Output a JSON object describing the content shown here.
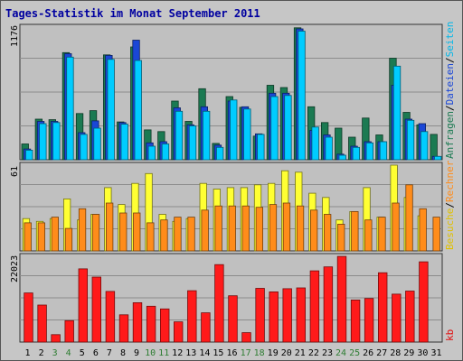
{
  "title": "Tages-Statistik im Monat September 2011",
  "colors": {
    "frame_bg": "#c6c6c6",
    "plot_bg": "#c0c0c0",
    "title": "#0000a0",
    "weekday_text": "#000000",
    "weekend_text": "#2e7d32",
    "anfragen": "#1b7a52",
    "dateien": "#1a47d6",
    "seiten": "#00ccff",
    "besuche": "#ffff33",
    "rechner": "#ff8c1a",
    "kb": "#ff1a1a"
  },
  "right_legends": {
    "top": [
      {
        "text": "Anfragen",
        "color": "#1b7a52"
      },
      {
        "text": "/",
        "color": "#000000"
      },
      {
        "text": "Dateien",
        "color": "#1a47d6"
      },
      {
        "text": "/",
        "color": "#000000"
      },
      {
        "text": "Seiten",
        "color": "#00b7e8"
      }
    ],
    "middle": [
      {
        "text": "Besuche",
        "color": "#e0c000"
      },
      {
        "text": "/",
        "color": "#000000"
      },
      {
        "text": "Rechner",
        "color": "#ff8c1a"
      }
    ],
    "bottom": [
      {
        "text": "kb",
        "color": "#e01010"
      }
    ]
  },
  "chart_data": [
    {
      "type": "bar",
      "panel": "top",
      "axis_max_label": "1176",
      "ylim": [
        0,
        1176
      ],
      "categories": [
        "1",
        "2",
        "3",
        "4",
        "5",
        "6",
        "7",
        "8",
        "9",
        "10",
        "11",
        "12",
        "13",
        "14",
        "15",
        "16",
        "17",
        "18",
        "19",
        "20",
        "21",
        "22",
        "23",
        "24",
        "25",
        "26",
        "27",
        "28",
        "29",
        "30",
        "31"
      ],
      "weekend": [
        false,
        false,
        true,
        true,
        false,
        false,
        false,
        false,
        false,
        true,
        true,
        false,
        false,
        false,
        false,
        false,
        true,
        true,
        false,
        false,
        false,
        false,
        false,
        true,
        true,
        false,
        false,
        false,
        false,
        false,
        false
      ],
      "series": [
        {
          "name": "Anfragen",
          "values": [
            140,
            360,
            355,
            950,
            410,
            435,
            930,
            335,
            1000,
            265,
            250,
            520,
            340,
            630,
            145,
            560,
            465,
            210,
            660,
            640,
            1170,
            470,
            330,
            280,
            200,
            370,
            220,
            900,
            420,
            310,
            225
          ]
        },
        {
          "name": "Dateien",
          "values": [
            95,
            340,
            340,
            940,
            240,
            345,
            925,
            330,
            1060,
            150,
            160,
            460,
            310,
            470,
            130,
            520,
            470,
            230,
            590,
            590,
            1160,
            260,
            220,
            50,
            120,
            160,
            160,
            660,
            360,
            320,
            30
          ]
        },
        {
          "name": "Seiten",
          "values": [
            85,
            320,
            330,
            910,
            225,
            280,
            890,
            315,
            880,
            120,
            140,
            430,
            300,
            430,
            110,
            530,
            450,
            225,
            560,
            570,
            1140,
            290,
            200,
            40,
            110,
            150,
            160,
            830,
            350,
            250,
            30
          ]
        }
      ]
    },
    {
      "type": "bar",
      "panel": "middle",
      "axis_max_label": "61",
      "ylim": [
        0,
        61
      ],
      "categories": [
        "1",
        "2",
        "3",
        "4",
        "5",
        "6",
        "7",
        "8",
        "9",
        "10",
        "11",
        "12",
        "13",
        "14",
        "15",
        "16",
        "17",
        "18",
        "19",
        "20",
        "21",
        "22",
        "23",
        "24",
        "25",
        "26",
        "27",
        "28",
        "29",
        "30",
        "31"
      ],
      "weekend": [
        false,
        false,
        true,
        true,
        false,
        false,
        false,
        false,
        false,
        true,
        true,
        false,
        false,
        false,
        false,
        false,
        true,
        true,
        false,
        false,
        false,
        false,
        false,
        true,
        true,
        false,
        false,
        false,
        false,
        false,
        false
      ],
      "series": [
        {
          "name": "Besuche",
          "values": [
            23,
            21,
            23,
            37,
            22,
            26,
            45,
            33,
            48,
            55,
            26,
            21,
            23,
            48,
            44,
            45,
            45,
            47,
            48,
            57,
            56,
            41,
            38,
            22,
            28,
            45,
            24,
            63,
            38,
            25,
            0
          ]
        },
        {
          "name": "Rechner",
          "values": [
            20,
            20,
            24,
            16,
            30,
            26,
            34,
            27,
            27,
            20,
            22,
            24,
            24,
            29,
            32,
            32,
            32,
            31,
            33,
            34,
            32,
            29,
            26,
            19,
            28,
            22,
            24,
            34,
            47,
            30,
            24
          ]
        }
      ]
    },
    {
      "type": "bar",
      "panel": "bottom",
      "axis_max_label": "22023",
      "ylim": [
        0,
        22023
      ],
      "categories": [
        "1",
        "2",
        "3",
        "4",
        "5",
        "6",
        "7",
        "8",
        "9",
        "10",
        "11",
        "12",
        "13",
        "14",
        "15",
        "16",
        "17",
        "18",
        "19",
        "20",
        "21",
        "22",
        "23",
        "24",
        "25",
        "26",
        "27",
        "28",
        "29",
        "30",
        "31"
      ],
      "weekend": [
        false,
        false,
        true,
        true,
        false,
        false,
        false,
        false,
        false,
        true,
        true,
        false,
        false,
        false,
        false,
        false,
        true,
        true,
        false,
        false,
        false,
        false,
        false,
        true,
        true,
        false,
        false,
        false,
        false,
        false,
        false
      ],
      "series": [
        {
          "name": "kb",
          "values": [
            12600,
            9500,
            1900,
            5500,
            18800,
            16700,
            13000,
            7000,
            10100,
            9200,
            8500,
            5200,
            13200,
            7500,
            19900,
            11900,
            2400,
            13800,
            12900,
            13700,
            13900,
            18300,
            19300,
            22000,
            10800,
            11200,
            17800,
            12300,
            13100,
            20600,
            0
          ]
        }
      ]
    }
  ]
}
